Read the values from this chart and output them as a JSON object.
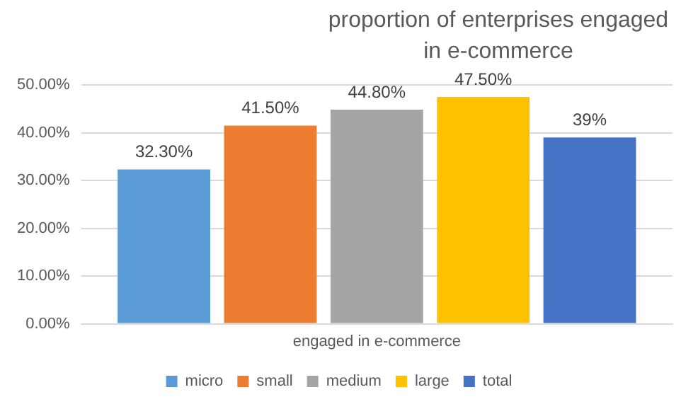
{
  "chart_data": {
    "type": "bar",
    "title": "proportion of enterprises engaged in e-commerce",
    "categories": [
      "engaged in e-commerce"
    ],
    "series": [
      {
        "name": "micro",
        "color": "#5b9bd5",
        "values": [
          32.3
        ],
        "value_labels": [
          "32.30%"
        ]
      },
      {
        "name": "small",
        "color": "#ed7d31",
        "values": [
          41.5
        ],
        "value_labels": [
          "41.50%"
        ]
      },
      {
        "name": "medium",
        "color": "#a5a5a5",
        "values": [
          44.8
        ],
        "value_labels": [
          "44.80%"
        ]
      },
      {
        "name": "large",
        "color": "#ffc000",
        "values": [
          47.5
        ],
        "value_labels": [
          "47.50%"
        ]
      },
      {
        "name": "total",
        "color": "#4472c4",
        "values": [
          39
        ],
        "value_labels": [
          "39%"
        ]
      }
    ],
    "ylim": [
      0,
      50
    ],
    "yticks": [
      {
        "value": 0,
        "label": "0.00%"
      },
      {
        "value": 10,
        "label": "10.00%"
      },
      {
        "value": 20,
        "label": "20.00%"
      },
      {
        "value": 30,
        "label": "30.00%"
      },
      {
        "value": 40,
        "label": "40.00%"
      },
      {
        "value": 50,
        "label": "50.00%"
      }
    ],
    "grid": "y",
    "legend": "bottom"
  }
}
